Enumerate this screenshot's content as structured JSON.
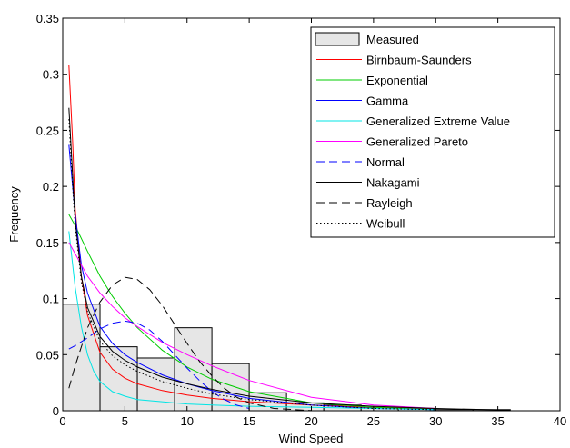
{
  "chart_data": {
    "type": "line",
    "xlabel": "Wind Speed",
    "ylabel": "Frequency",
    "xlim": [
      0,
      40
    ],
    "ylim": [
      0,
      0.35
    ],
    "xticks": [
      0,
      5,
      10,
      15,
      20,
      25,
      30,
      35,
      40
    ],
    "yticks": [
      0,
      0.05,
      0.1,
      0.15,
      0.2,
      0.25,
      0.3,
      0.35
    ],
    "xtick_labels": [
      "0",
      "5",
      "10",
      "15",
      "20",
      "25",
      "30",
      "35",
      "40"
    ],
    "ytick_labels": [
      "0",
      "0.05",
      "0.1",
      "0.15",
      "0.2",
      "0.25",
      "0.3",
      "0.35"
    ],
    "grid": false,
    "legend_position": "top-right",
    "histogram": {
      "name": "Measured",
      "color": "#e6e6e6",
      "bins": [
        {
          "x0": 0,
          "x1": 3,
          "value": 0.095
        },
        {
          "x0": 3,
          "x1": 6,
          "value": 0.057
        },
        {
          "x0": 6,
          "x1": 9,
          "value": 0.047
        },
        {
          "x0": 9,
          "x1": 12,
          "value": 0.074
        },
        {
          "x0": 12,
          "x1": 15,
          "value": 0.042
        },
        {
          "x0": 15,
          "x1": 18,
          "value": 0.016
        },
        {
          "x0": 18,
          "x1": 21,
          "value": 0.007
        },
        {
          "x0": 21,
          "x1": 24,
          "value": 0.005
        },
        {
          "x0": 24,
          "x1": 27,
          "value": 0.003
        },
        {
          "x0": 27,
          "x1": 30,
          "value": 0.002
        },
        {
          "x0": 30,
          "x1": 33,
          "value": 0.001
        },
        {
          "x0": 33,
          "x1": 36,
          "value": 0.001
        }
      ]
    },
    "series": [
      {
        "name": "Birnbaum-Saunders",
        "color": "#ff0000",
        "dash": "solid",
        "x": [
          0.5,
          0.8,
          1,
          1.5,
          2,
          3,
          4,
          5,
          6,
          8,
          10,
          12,
          15,
          20,
          25,
          30
        ],
        "y": [
          0.308,
          0.24,
          0.18,
          0.12,
          0.085,
          0.052,
          0.037,
          0.029,
          0.024,
          0.018,
          0.014,
          0.011,
          0.008,
          0.005,
          0.003,
          0.002
        ]
      },
      {
        "name": "Exponential",
        "color": "#00cc00",
        "dash": "solid",
        "x": [
          0.5,
          1,
          2,
          3,
          4,
          5,
          6,
          8,
          10,
          12,
          15,
          20,
          25,
          30
        ],
        "y": [
          0.175,
          0.165,
          0.142,
          0.12,
          0.102,
          0.087,
          0.074,
          0.054,
          0.039,
          0.028,
          0.017,
          0.007,
          0.003,
          0.001
        ]
      },
      {
        "name": "Gamma",
        "color": "#0000ff",
        "dash": "solid",
        "x": [
          0.5,
          0.8,
          1,
          1.5,
          2,
          3,
          4,
          5,
          6,
          8,
          10,
          12,
          15,
          20,
          25,
          30
        ],
        "y": [
          0.237,
          0.2,
          0.175,
          0.13,
          0.105,
          0.075,
          0.06,
          0.05,
          0.043,
          0.032,
          0.024,
          0.018,
          0.011,
          0.005,
          0.002,
          0.001
        ]
      },
      {
        "name": "Generalized Extreme Value",
        "color": "#00e5e5",
        "dash": "solid",
        "x": [
          0.5,
          1,
          1.5,
          2,
          2.5,
          3,
          4,
          5,
          6,
          8,
          10,
          12,
          15,
          20,
          25,
          30
        ],
        "y": [
          0.16,
          0.11,
          0.075,
          0.05,
          0.035,
          0.026,
          0.017,
          0.013,
          0.01,
          0.008,
          0.006,
          0.005,
          0.004,
          0.003,
          0.002,
          0.001
        ]
      },
      {
        "name": "Generalized Pareto",
        "color": "#ff00ff",
        "dash": "solid",
        "x": [
          0.5,
          1,
          2,
          3,
          4,
          5,
          6,
          8,
          10,
          12,
          15,
          20,
          25,
          30
        ],
        "y": [
          0.15,
          0.14,
          0.12,
          0.105,
          0.093,
          0.083,
          0.075,
          0.061,
          0.05,
          0.04,
          0.027,
          0.012,
          0.005,
          0.002
        ]
      },
      {
        "name": "Normal",
        "color": "#0000ff",
        "dash": "dashed",
        "x": [
          0.5,
          1,
          2,
          3,
          4,
          5,
          6,
          7,
          8,
          9,
          10,
          11,
          12,
          13,
          14,
          15
        ],
        "y": [
          0.055,
          0.058,
          0.065,
          0.073,
          0.078,
          0.08,
          0.078,
          0.072,
          0.062,
          0.05,
          0.038,
          0.027,
          0.017,
          0.01,
          0.005,
          0.002
        ]
      },
      {
        "name": "Nakagami",
        "color": "#000000",
        "dash": "solid",
        "x": [
          0.5,
          0.8,
          1,
          1.5,
          2,
          3,
          4,
          5,
          6,
          8,
          10,
          12,
          15,
          20,
          25,
          30,
          36
        ],
        "y": [
          0.27,
          0.21,
          0.17,
          0.12,
          0.092,
          0.066,
          0.053,
          0.045,
          0.039,
          0.03,
          0.024,
          0.019,
          0.013,
          0.007,
          0.004,
          0.002,
          0.0005
        ]
      },
      {
        "name": "Rayleigh",
        "color": "#000000",
        "dash": "dashed",
        "x": [
          0.5,
          1,
          1.5,
          2,
          3,
          4,
          5,
          6,
          7,
          8,
          9,
          10,
          11,
          12,
          13,
          14,
          15,
          17,
          20
        ],
        "y": [
          0.02,
          0.04,
          0.057,
          0.074,
          0.097,
          0.112,
          0.119,
          0.117,
          0.108,
          0.094,
          0.077,
          0.06,
          0.044,
          0.031,
          0.02,
          0.012,
          0.007,
          0.002,
          0.0002
        ]
      },
      {
        "name": "Weibull",
        "color": "#000000",
        "dash": "dotted",
        "x": [
          0.5,
          0.8,
          1,
          1.5,
          2,
          3,
          4,
          5,
          6,
          8,
          10,
          12,
          15,
          20,
          25,
          30
        ],
        "y": [
          0.26,
          0.2,
          0.165,
          0.115,
          0.088,
          0.062,
          0.049,
          0.041,
          0.035,
          0.026,
          0.02,
          0.015,
          0.01,
          0.005,
          0.002,
          0.001
        ]
      }
    ]
  }
}
